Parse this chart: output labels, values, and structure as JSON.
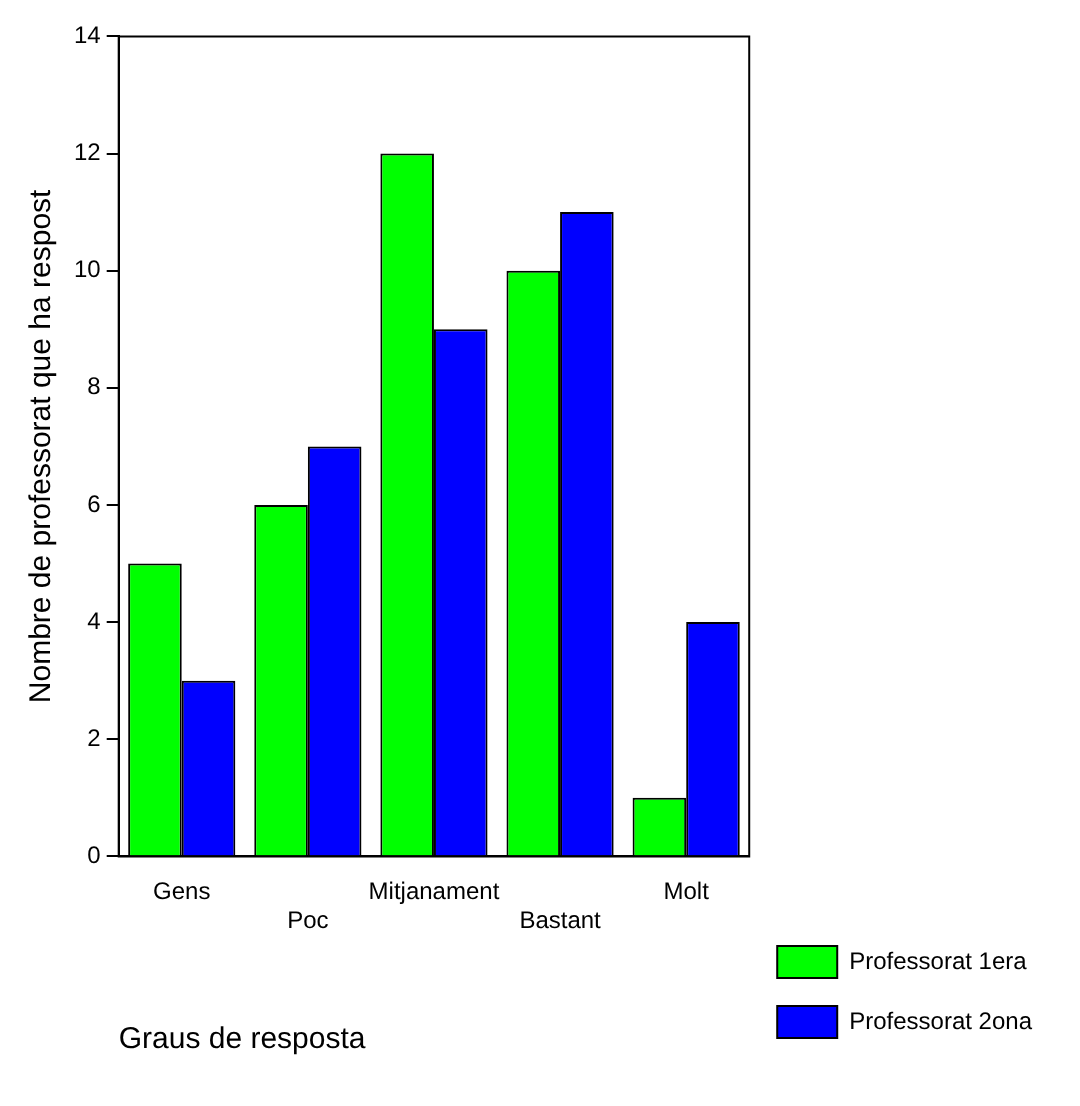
{
  "chart_data": {
    "type": "bar",
    "xlabel": "Graus de resposta",
    "ylabel": "Nombre de professorat que ha respost",
    "categories": [
      "Gens",
      "Poc",
      "Mitjanament",
      "Bastant",
      "Molt"
    ],
    "series": [
      {
        "name": "Professorat 1era",
        "color": "#00ff00",
        "values": [
          5,
          6,
          12,
          10,
          1
        ]
      },
      {
        "name": "Professorat 2ona",
        "color": "#0000ff",
        "values": [
          3,
          7,
          9,
          11,
          4
        ]
      }
    ],
    "ylim": [
      0,
      14
    ],
    "yticks": [
      0,
      2,
      4,
      6,
      8,
      10,
      12,
      14
    ],
    "grid": false,
    "legend": "bottom right"
  }
}
